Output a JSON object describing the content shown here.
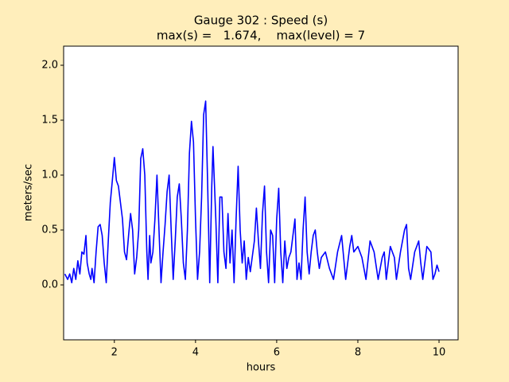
{
  "chart_data": {
    "type": "line",
    "title": "Gauge 302 : Speed (s)",
    "subtitle": "max(s) =   1.674,    max(level) = 7",
    "xlabel": "hours",
    "ylabel": "meters/sec",
    "color": "#0000ff",
    "xlim": [
      0.75,
      10.47
    ],
    "ylim": [
      -0.5,
      2.174
    ],
    "xticks": [
      2,
      4,
      6,
      8,
      10
    ],
    "yticks": [
      {
        "value": 0,
        "label": "0.0"
      },
      {
        "value": 0.5,
        "label": "0.5"
      },
      {
        "value": 1,
        "label": "1.0"
      },
      {
        "value": 1.5,
        "label": "1.5"
      },
      {
        "value": 2,
        "label": "2.0"
      }
    ],
    "x": [
      0.78,
      0.85,
      0.9,
      0.95,
      1.0,
      1.05,
      1.1,
      1.15,
      1.2,
      1.25,
      1.3,
      1.33,
      1.38,
      1.42,
      1.45,
      1.5,
      1.55,
      1.6,
      1.65,
      1.7,
      1.75,
      1.8,
      1.85,
      1.9,
      1.95,
      2.0,
      2.05,
      2.1,
      2.15,
      2.2,
      2.25,
      2.3,
      2.35,
      2.4,
      2.45,
      2.5,
      2.55,
      2.6,
      2.65,
      2.7,
      2.75,
      2.8,
      2.83,
      2.87,
      2.9,
      2.95,
      3.0,
      3.05,
      3.1,
      3.15,
      3.2,
      3.25,
      3.3,
      3.35,
      3.4,
      3.45,
      3.5,
      3.55,
      3.6,
      3.65,
      3.7,
      3.75,
      3.8,
      3.85,
      3.9,
      3.95,
      4.0,
      4.05,
      4.1,
      4.15,
      4.2,
      4.25,
      4.3,
      4.35,
      4.4,
      4.43,
      4.5,
      4.55,
      4.6,
      4.65,
      4.7,
      4.75,
      4.8,
      4.85,
      4.9,
      4.95,
      5.0,
      5.05,
      5.1,
      5.15,
      5.2,
      5.25,
      5.3,
      5.35,
      5.45,
      5.5,
      5.55,
      5.6,
      5.65,
      5.7,
      5.75,
      5.8,
      5.85,
      5.9,
      5.95,
      6.0,
      6.05,
      6.1,
      6.15,
      6.2,
      6.25,
      6.3,
      6.35,
      6.45,
      6.5,
      6.55,
      6.6,
      6.65,
      6.7,
      6.75,
      6.8,
      6.85,
      6.9,
      6.95,
      7.0,
      7.05,
      7.1,
      7.2,
      7.3,
      7.4,
      7.5,
      7.6,
      7.7,
      7.8,
      7.85,
      7.9,
      8.0,
      8.1,
      8.2,
      8.3,
      8.4,
      8.5,
      8.6,
      8.65,
      8.7,
      8.8,
      8.9,
      8.95,
      9.05,
      9.15,
      9.2,
      9.25,
      9.3,
      9.4,
      9.5,
      9.55,
      9.6,
      9.7,
      9.8,
      9.85,
      9.9,
      9.95,
      10.0
    ],
    "values": [
      0.1,
      0.05,
      0.1,
      0.02,
      0.15,
      0.05,
      0.22,
      0.1,
      0.3,
      0.28,
      0.45,
      0.2,
      0.1,
      0.05,
      0.15,
      0.02,
      0.3,
      0.53,
      0.55,
      0.45,
      0.2,
      0.02,
      0.4,
      0.75,
      0.95,
      1.16,
      0.95,
      0.9,
      0.75,
      0.6,
      0.3,
      0.23,
      0.45,
      0.65,
      0.5,
      0.1,
      0.25,
      0.5,
      1.15,
      1.24,
      1.0,
      0.3,
      0.05,
      0.45,
      0.2,
      0.3,
      0.6,
      1.0,
      0.5,
      0.02,
      0.3,
      0.55,
      0.85,
      1.0,
      0.5,
      0.05,
      0.4,
      0.8,
      0.92,
      0.6,
      0.2,
      0.05,
      0.5,
      1.2,
      1.49,
      1.3,
      0.6,
      0.05,
      0.3,
      0.8,
      1.55,
      1.674,
      0.9,
      0.02,
      0.9,
      1.26,
      0.6,
      0.02,
      0.8,
      0.8,
      0.3,
      0.15,
      0.65,
      0.2,
      0.5,
      0.02,
      0.6,
      1.08,
      0.5,
      0.2,
      0.4,
      0.05,
      0.25,
      0.12,
      0.4,
      0.7,
      0.4,
      0.15,
      0.65,
      0.9,
      0.3,
      0.02,
      0.5,
      0.45,
      0.02,
      0.6,
      0.88,
      0.3,
      0.02,
      0.4,
      0.15,
      0.25,
      0.3,
      0.6,
      0.05,
      0.2,
      0.05,
      0.5,
      0.8,
      0.3,
      0.1,
      0.3,
      0.45,
      0.5,
      0.3,
      0.15,
      0.25,
      0.3,
      0.15,
      0.05,
      0.3,
      0.45,
      0.05,
      0.35,
      0.45,
      0.3,
      0.35,
      0.25,
      0.05,
      0.4,
      0.3,
      0.05,
      0.25,
      0.3,
      0.05,
      0.35,
      0.25,
      0.05,
      0.3,
      0.5,
      0.55,
      0.15,
      0.05,
      0.3,
      0.4,
      0.2,
      0.05,
      0.35,
      0.3,
      0.05,
      0.1,
      0.18,
      0.12
    ]
  }
}
